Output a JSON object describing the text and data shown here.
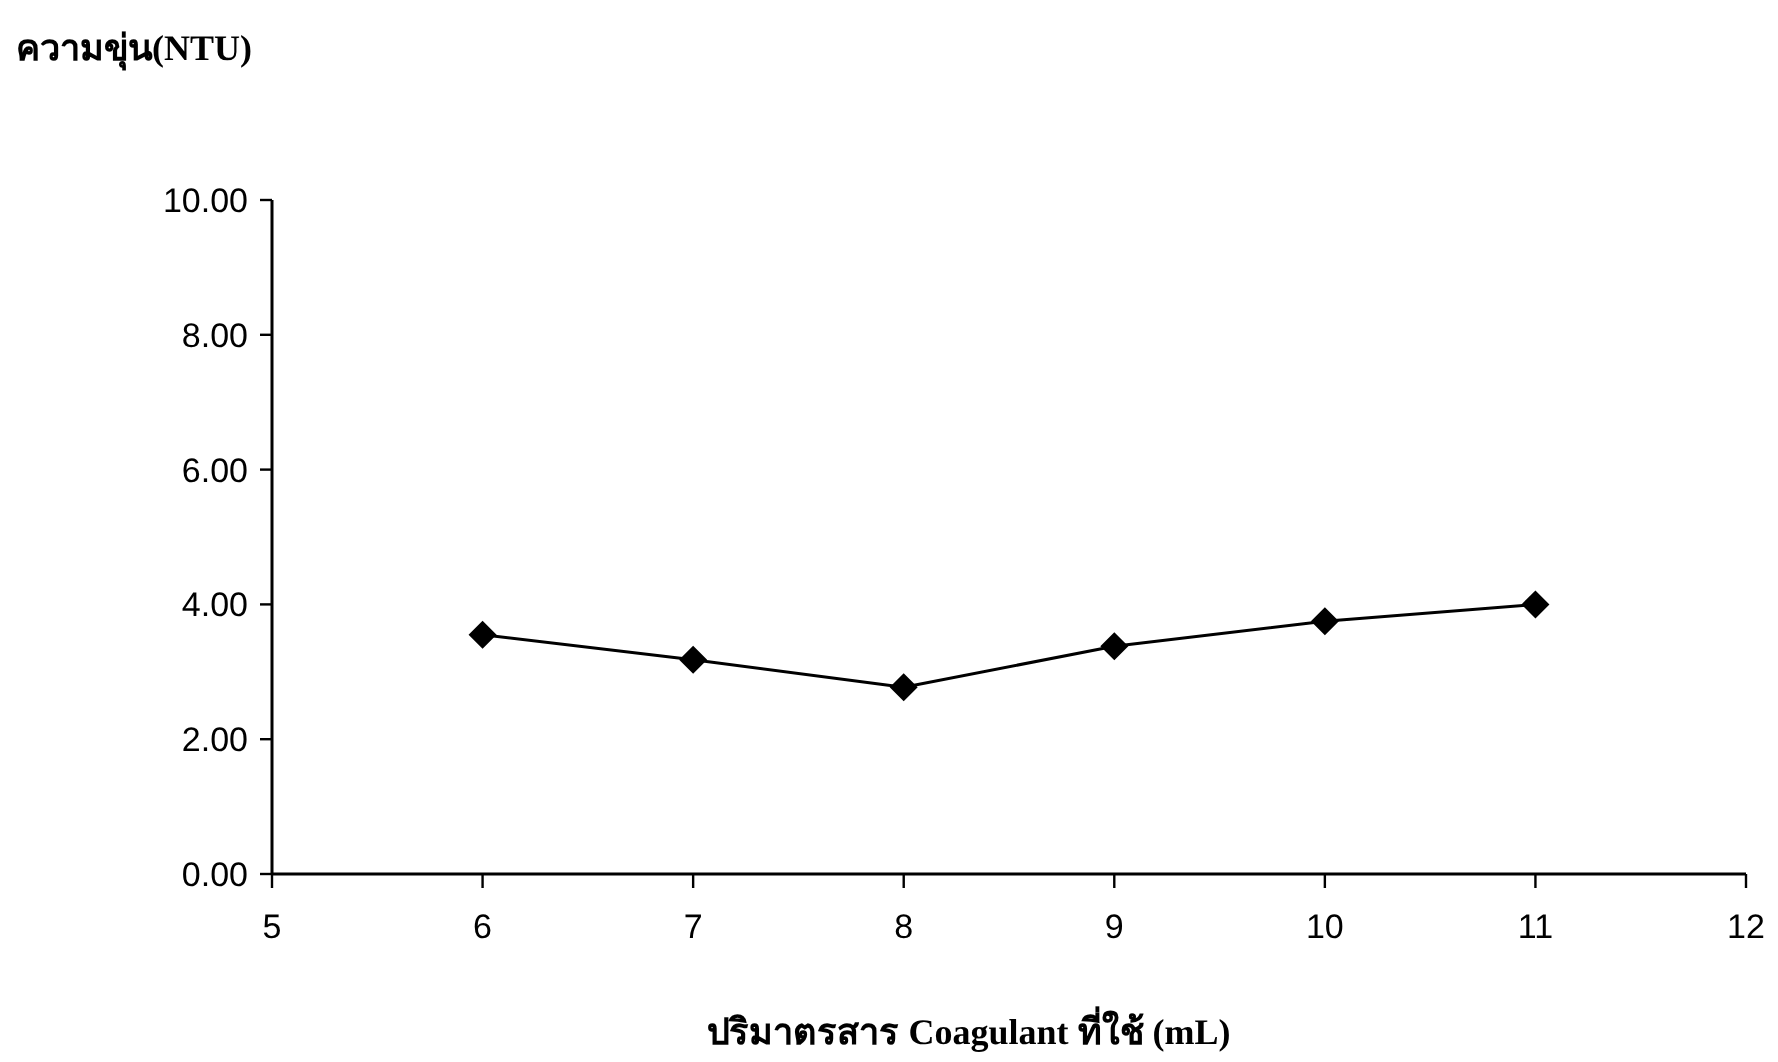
{
  "chart_data": {
    "type": "line",
    "ylabel": "ความขุ่น(NTU)",
    "xlabel": "ปริมาตรสาร Coagulant ที่ใช้ (mL)",
    "x": [
      6,
      7,
      8,
      9,
      10,
      11
    ],
    "series": [
      {
        "color": "#000000",
        "values": [
          3.55,
          3.18,
          2.77,
          3.38,
          3.75,
          4.0
        ]
      }
    ],
    "xlim": [
      5,
      12
    ],
    "xticks": [
      5,
      6,
      7,
      8,
      9,
      10,
      11,
      12
    ],
    "ylim": [
      0,
      10
    ],
    "yticks": [
      {
        "value": 0,
        "label": "0.00"
      },
      {
        "value": 2,
        "label": "2.00"
      },
      {
        "value": 4,
        "label": "4.00"
      },
      {
        "value": 6,
        "label": "6.00"
      },
      {
        "value": 8,
        "label": "8.00"
      },
      {
        "value": 10,
        "label": "10.00"
      }
    ],
    "marker": "diamond",
    "line_style": "solid",
    "grid": false
  }
}
